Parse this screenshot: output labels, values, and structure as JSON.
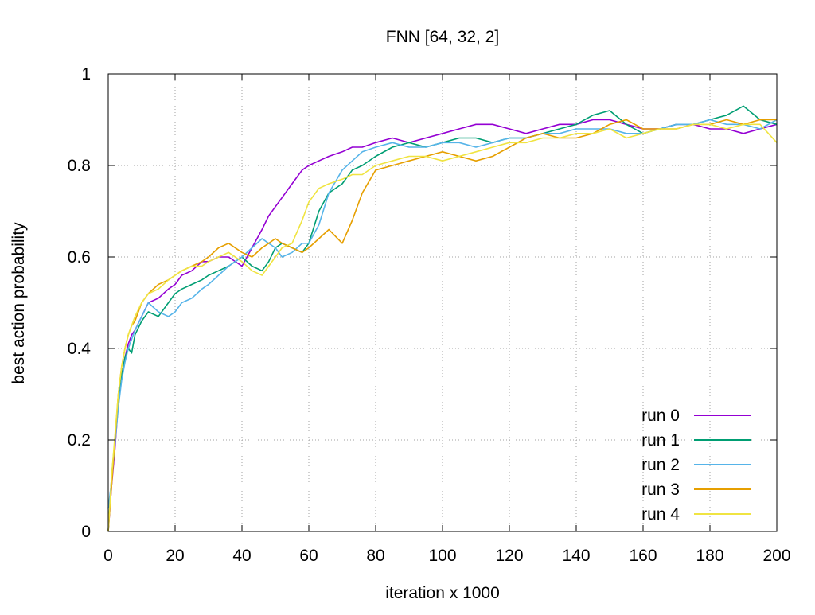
{
  "chart_data": {
    "type": "line",
    "title": "FNN [64, 32, 2]",
    "xlabel": "iteration x 1000",
    "ylabel": "best action probability",
    "xlim": [
      0,
      200
    ],
    "ylim": [
      0,
      1
    ],
    "xticks": [
      "0",
      "20",
      "40",
      "60",
      "80",
      "100",
      "120",
      "140",
      "160",
      "180",
      "200"
    ],
    "yticks": [
      "0",
      "0.2",
      "0.4",
      "0.6",
      "0.8",
      "1"
    ],
    "grid": true,
    "legend_position": "bottom-right",
    "x": [
      0,
      1,
      2,
      3,
      4,
      5,
      6,
      7,
      8,
      10,
      12,
      15,
      18,
      20,
      22,
      25,
      28,
      30,
      33,
      36,
      40,
      43,
      46,
      48,
      50,
      52,
      55,
      58,
      60,
      63,
      66,
      70,
      73,
      76,
      80,
      85,
      90,
      95,
      100,
      105,
      110,
      115,
      120,
      125,
      130,
      135,
      140,
      145,
      150,
      155,
      160,
      165,
      170,
      175,
      180,
      185,
      190,
      195,
      200
    ],
    "series": [
      {
        "name": "run 0",
        "color": "#9400d3",
        "values": [
          0.0,
          0.1,
          0.18,
          0.28,
          0.34,
          0.38,
          0.41,
          0.43,
          0.44,
          0.47,
          0.5,
          0.51,
          0.53,
          0.54,
          0.56,
          0.57,
          0.59,
          0.59,
          0.6,
          0.6,
          0.58,
          0.62,
          0.66,
          0.69,
          0.71,
          0.73,
          0.76,
          0.79,
          0.8,
          0.81,
          0.82,
          0.83,
          0.84,
          0.84,
          0.85,
          0.86,
          0.85,
          0.86,
          0.87,
          0.88,
          0.89,
          0.89,
          0.88,
          0.87,
          0.88,
          0.89,
          0.89,
          0.9,
          0.9,
          0.89,
          0.88,
          0.88,
          0.89,
          0.89,
          0.88,
          0.88,
          0.87,
          0.88,
          0.89
        ]
      },
      {
        "name": "run 1",
        "color": "#009e73",
        "values": [
          0.0,
          0.12,
          0.2,
          0.29,
          0.34,
          0.38,
          0.4,
          0.39,
          0.43,
          0.46,
          0.48,
          0.47,
          0.5,
          0.52,
          0.53,
          0.54,
          0.55,
          0.56,
          0.57,
          0.58,
          0.6,
          0.58,
          0.57,
          0.59,
          0.62,
          0.63,
          0.62,
          0.61,
          0.63,
          0.7,
          0.74,
          0.76,
          0.79,
          0.8,
          0.82,
          0.84,
          0.85,
          0.84,
          0.85,
          0.86,
          0.86,
          0.85,
          0.86,
          0.86,
          0.87,
          0.88,
          0.89,
          0.91,
          0.92,
          0.89,
          0.87,
          0.88,
          0.89,
          0.89,
          0.9,
          0.91,
          0.93,
          0.9,
          0.89
        ]
      },
      {
        "name": "run 2",
        "color": "#56b4e9",
        "values": [
          0.05,
          0.11,
          0.19,
          0.27,
          0.33,
          0.37,
          0.4,
          0.42,
          0.44,
          0.47,
          0.5,
          0.48,
          0.47,
          0.48,
          0.5,
          0.51,
          0.53,
          0.54,
          0.56,
          0.58,
          0.6,
          0.62,
          0.64,
          0.63,
          0.62,
          0.6,
          0.61,
          0.63,
          0.63,
          0.67,
          0.74,
          0.79,
          0.81,
          0.83,
          0.84,
          0.85,
          0.84,
          0.84,
          0.85,
          0.85,
          0.84,
          0.85,
          0.86,
          0.86,
          0.87,
          0.87,
          0.88,
          0.88,
          0.88,
          0.87,
          0.87,
          0.88,
          0.89,
          0.89,
          0.9,
          0.89,
          0.89,
          0.88,
          0.9
        ]
      },
      {
        "name": "run 3",
        "color": "#e69f00",
        "values": [
          0.0,
          0.1,
          0.2,
          0.3,
          0.36,
          0.4,
          0.43,
          0.45,
          0.46,
          0.5,
          0.52,
          0.54,
          0.55,
          0.56,
          0.57,
          0.58,
          0.59,
          0.6,
          0.62,
          0.63,
          0.61,
          0.6,
          0.62,
          0.63,
          0.64,
          0.63,
          0.62,
          0.61,
          0.62,
          0.64,
          0.66,
          0.63,
          0.68,
          0.74,
          0.79,
          0.8,
          0.81,
          0.82,
          0.83,
          0.82,
          0.81,
          0.82,
          0.84,
          0.86,
          0.87,
          0.86,
          0.86,
          0.87,
          0.89,
          0.9,
          0.88,
          0.88,
          0.88,
          0.89,
          0.89,
          0.9,
          0.89,
          0.9,
          0.9
        ]
      },
      {
        "name": "run 4",
        "color": "#f0e442",
        "values": [
          0.0,
          0.12,
          0.21,
          0.3,
          0.36,
          0.4,
          0.43,
          0.45,
          0.47,
          0.5,
          0.52,
          0.53,
          0.55,
          0.56,
          0.57,
          0.58,
          0.58,
          0.59,
          0.6,
          0.61,
          0.59,
          0.57,
          0.56,
          0.58,
          0.6,
          0.62,
          0.63,
          0.68,
          0.72,
          0.75,
          0.76,
          0.77,
          0.78,
          0.78,
          0.8,
          0.81,
          0.82,
          0.82,
          0.81,
          0.82,
          0.83,
          0.84,
          0.85,
          0.85,
          0.86,
          0.86,
          0.87,
          0.87,
          0.88,
          0.86,
          0.87,
          0.88,
          0.88,
          0.89,
          0.89,
          0.88,
          0.89,
          0.89,
          0.85
        ]
      }
    ]
  }
}
